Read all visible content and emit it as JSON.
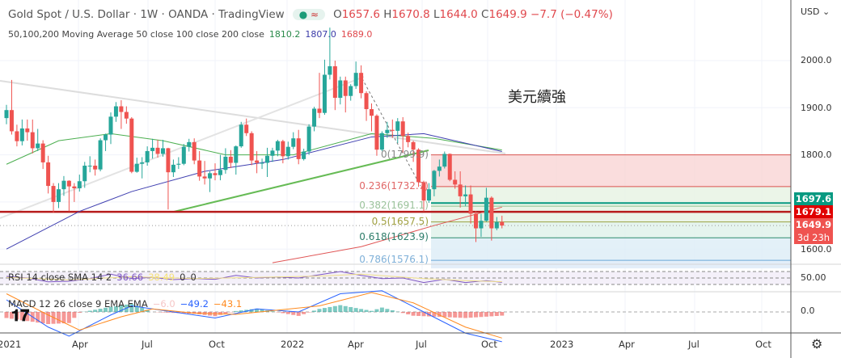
{
  "header": {
    "symbol": "Gold Spot / U.S. Dollar · 1W · OANDA · TradingView",
    "badge_dot": "●",
    "badge_wave": "≈",
    "open_label": "O",
    "open": "1657.6",
    "high_label": "H",
    "high": "1670.8",
    "low_label": "L",
    "low": "1644.0",
    "close_label": "C",
    "close": "1649.9",
    "change": "−7.7 (−0.47%)",
    "ma_label": "50,100,200 Moving Average 50 close 100 close 200 close",
    "ma50": "1810.2",
    "ma100": "1807.0",
    "ma200": "1689.0"
  },
  "annotation": "美元續強",
  "fib_labels": [
    "0(1799.9)",
    "0.236(1732.7)",
    "0.382(1691.1)",
    "0.5(1657.5)",
    "0.618(1623.9)",
    "0.786(1576.1)"
  ],
  "price_axis": {
    "currency": "USD ⌄",
    "ticks": [
      "2000.0",
      "1900.0",
      "1800.0",
      "1600.0"
    ],
    "rsi_tick": "50.00",
    "macd_tick": "0.0"
  },
  "price_tags": {
    "tag1": "1697.6",
    "tag2": "1679.1",
    "last": "1649.9",
    "countdown": "3d 23h"
  },
  "rsi_legend": {
    "label": "RSI 14 close SMA 14 2",
    "rsi": "36.66",
    "sma": "38.49",
    "v3": "0",
    "v4": "0"
  },
  "macd_legend": {
    "label": "MACD 12 26 close 9 EMA EMA",
    "hist": "−6.0",
    "macd": "−49.2",
    "signal": "−43.1"
  },
  "time_axis": [
    "2021",
    "Apr",
    "Jul",
    "Oct",
    "2022",
    "Apr",
    "Jul",
    "Oct",
    "2023",
    "Apr",
    "Jul",
    "Oct"
  ],
  "logo": "TV",
  "settings_icon": "gear-icon",
  "colors": {
    "up": "#26a69a",
    "down": "#ef5350",
    "ma50": "#4caf50",
    "ma100": "#3f3fb0",
    "ma200": "#e05555",
    "support": "#b71c1c",
    "fib_teal": "#089981"
  },
  "chart_data": {
    "type": "candlestick",
    "interval": "1W",
    "x_start": "2020-12-28",
    "ylim": [
      1540,
      2110
    ],
    "candles_ohlc": [
      [
        1878,
        1906,
        1865,
        1895
      ],
      [
        1895,
        1959,
        1843,
        1850
      ],
      [
        1850,
        1864,
        1818,
        1829
      ],
      [
        1829,
        1875,
        1820,
        1856
      ],
      [
        1856,
        1875,
        1830,
        1848
      ],
      [
        1848,
        1875,
        1803,
        1814
      ],
      [
        1814,
        1855,
        1808,
        1824
      ],
      [
        1824,
        1831,
        1770,
        1784
      ],
      [
        1784,
        1798,
        1718,
        1734
      ],
      [
        1734,
        1740,
        1677,
        1700
      ],
      [
        1700,
        1740,
        1687,
        1727
      ],
      [
        1727,
        1755,
        1713,
        1745
      ],
      [
        1745,
        1746,
        1680,
        1733
      ],
      [
        1733,
        1740,
        1700,
        1729
      ],
      [
        1729,
        1758,
        1722,
        1744
      ],
      [
        1744,
        1785,
        1730,
        1777
      ],
      [
        1777,
        1797,
        1763,
        1777
      ],
      [
        1777,
        1790,
        1756,
        1769
      ],
      [
        1769,
        1835,
        1765,
        1831
      ],
      [
        1831,
        1845,
        1808,
        1843
      ],
      [
        1843,
        1890,
        1823,
        1881
      ],
      [
        1881,
        1912,
        1870,
        1903
      ],
      [
        1903,
        1916,
        1855,
        1891
      ],
      [
        1891,
        1903,
        1866,
        1877
      ],
      [
        1877,
        1880,
        1761,
        1764
      ],
      [
        1764,
        1794,
        1762,
        1781
      ],
      [
        1781,
        1795,
        1750,
        1784
      ],
      [
        1784,
        1818,
        1777,
        1808
      ],
      [
        1808,
        1834,
        1792,
        1815
      ],
      [
        1815,
        1832,
        1794,
        1802
      ],
      [
        1802,
        1832,
        1796,
        1814
      ],
      [
        1814,
        1815,
        1684,
        1763
      ],
      [
        1763,
        1790,
        1753,
        1779
      ],
      [
        1779,
        1795,
        1770,
        1781
      ],
      [
        1781,
        1823,
        1778,
        1817
      ],
      [
        1817,
        1834,
        1807,
        1827
      ],
      [
        1827,
        1835,
        1780,
        1788
      ],
      [
        1788,
        1808,
        1745,
        1754
      ],
      [
        1754,
        1787,
        1737,
        1750
      ],
      [
        1750,
        1765,
        1721,
        1761
      ],
      [
        1761,
        1782,
        1746,
        1757
      ],
      [
        1757,
        1800,
        1746,
        1768
      ],
      [
        1768,
        1814,
        1760,
        1796
      ],
      [
        1796,
        1810,
        1772,
        1783
      ],
      [
        1783,
        1820,
        1758,
        1818
      ],
      [
        1818,
        1870,
        1815,
        1864
      ],
      [
        1864,
        1877,
        1840,
        1846
      ],
      [
        1846,
        1850,
        1778,
        1788
      ],
      [
        1788,
        1808,
        1761,
        1783
      ],
      [
        1783,
        1792,
        1770,
        1783
      ],
      [
        1783,
        1815,
        1753,
        1798
      ],
      [
        1798,
        1815,
        1785,
        1809
      ],
      [
        1809,
        1832,
        1797,
        1829
      ],
      [
        1829,
        1832,
        1782,
        1797
      ],
      [
        1797,
        1828,
        1790,
        1817
      ],
      [
        1817,
        1848,
        1812,
        1835
      ],
      [
        1835,
        1853,
        1780,
        1791
      ],
      [
        1791,
        1813,
        1788,
        1807
      ],
      [
        1807,
        1865,
        1800,
        1860
      ],
      [
        1860,
        1902,
        1850,
        1898
      ],
      [
        1898,
        1974,
        1878,
        1889
      ],
      [
        1889,
        2002,
        1885,
        1970
      ],
      [
        1970,
        2070,
        1960,
        1988
      ],
      [
        1988,
        2000,
        1895,
        1921
      ],
      [
        1921,
        1966,
        1907,
        1958
      ],
      [
        1958,
        1966,
        1890,
        1925
      ],
      [
        1925,
        1950,
        1915,
        1946
      ],
      [
        1946,
        1998,
        1940,
        1974
      ],
      [
        1974,
        1990,
        1920,
        1931
      ],
      [
        1931,
        1935,
        1872,
        1897
      ],
      [
        1897,
        1909,
        1850,
        1883
      ],
      [
        1883,
        1886,
        1798,
        1811
      ],
      [
        1811,
        1850,
        1808,
        1846
      ],
      [
        1846,
        1870,
        1836,
        1853
      ],
      [
        1853,
        1875,
        1836,
        1851
      ],
      [
        1851,
        1878,
        1825,
        1871
      ],
      [
        1871,
        1880,
        1805,
        1840
      ],
      [
        1840,
        1847,
        1816,
        1827
      ],
      [
        1827,
        1830,
        1785,
        1811
      ],
      [
        1811,
        1814,
        1732,
        1742
      ],
      [
        1742,
        1745,
        1680,
        1703
      ],
      [
        1703,
        1740,
        1698,
        1727
      ],
      [
        1727,
        1768,
        1712,
        1766
      ],
      [
        1766,
        1790,
        1754,
        1775
      ],
      [
        1775,
        1807,
        1771,
        1802
      ],
      [
        1802,
        1803,
        1744,
        1747
      ],
      [
        1747,
        1765,
        1728,
        1737
      ],
      [
        1737,
        1765,
        1688,
        1712
      ],
      [
        1712,
        1735,
        1691,
        1716
      ],
      [
        1716,
        1735,
        1654,
        1675
      ],
      [
        1675,
        1680,
        1615,
        1644
      ],
      [
        1644,
        1675,
        1626,
        1660
      ],
      [
        1660,
        1730,
        1658,
        1709
      ],
      [
        1709,
        1712,
        1618,
        1644
      ],
      [
        1644,
        1668,
        1640,
        1657.6
      ],
      [
        1657.6,
        1670.8,
        1644.0,
        1649.9
      ]
    ],
    "ma50": [
      [
        0,
        1780
      ],
      [
        10,
        1830
      ],
      [
        20,
        1845
      ],
      [
        30,
        1830
      ],
      [
        42,
        1800
      ],
      [
        55,
        1800
      ],
      [
        70,
        1845
      ],
      [
        82,
        1835
      ],
      [
        95,
        1810.2
      ]
    ],
    "ma100": [
      [
        0,
        1600
      ],
      [
        14,
        1680
      ],
      [
        24,
        1722
      ],
      [
        38,
        1765
      ],
      [
        53,
        1790
      ],
      [
        70,
        1838
      ],
      [
        80,
        1845
      ],
      [
        95,
        1807.0
      ]
    ],
    "ma200": [
      [
        51,
        1571
      ],
      [
        68,
        1605
      ],
      [
        82,
        1650
      ],
      [
        95,
        1689.0
      ]
    ],
    "support_level": 1679.1,
    "resistance_level": 1697.6,
    "fib_levels": [
      {
        "ratio": 0,
        "price": 1799.9
      },
      {
        "ratio": 0.236,
        "price": 1732.7
      },
      {
        "ratio": 0.382,
        "price": 1691.1
      },
      {
        "ratio": 0.5,
        "price": 1657.5
      },
      {
        "ratio": 0.618,
        "price": 1623.9
      },
      {
        "ratio": 0.786,
        "price": 1576.1
      }
    ],
    "rsi": [
      [
        0,
        55
      ],
      [
        4,
        50
      ],
      [
        8,
        38
      ],
      [
        12,
        40
      ],
      [
        16,
        48
      ],
      [
        20,
        62
      ],
      [
        24,
        48
      ],
      [
        28,
        52
      ],
      [
        32,
        45
      ],
      [
        36,
        48
      ],
      [
        40,
        46
      ],
      [
        44,
        58
      ],
      [
        48,
        50
      ],
      [
        52,
        53
      ],
      [
        56,
        50
      ],
      [
        60,
        60
      ],
      [
        64,
        70
      ],
      [
        68,
        58
      ],
      [
        72,
        48
      ],
      [
        76,
        50
      ],
      [
        80,
        36
      ],
      [
        84,
        46
      ],
      [
        88,
        36
      ],
      [
        92,
        42
      ],
      [
        95,
        36.66
      ]
    ],
    "rsi_sma": [
      [
        0,
        52
      ],
      [
        12,
        44
      ],
      [
        24,
        54
      ],
      [
        36,
        48
      ],
      [
        48,
        52
      ],
      [
        60,
        56
      ],
      [
        68,
        62
      ],
      [
        80,
        48
      ],
      [
        88,
        42
      ],
      [
        95,
        38.49
      ]
    ],
    "macd": [
      [
        0,
        20
      ],
      [
        8,
        -25
      ],
      [
        12,
        -40
      ],
      [
        20,
        -5
      ],
      [
        24,
        10
      ],
      [
        32,
        0
      ],
      [
        40,
        -10
      ],
      [
        48,
        5
      ],
      [
        56,
        0
      ],
      [
        64,
        30
      ],
      [
        72,
        35
      ],
      [
        80,
        0
      ],
      [
        88,
        -35
      ],
      [
        95,
        -49.2
      ]
    ],
    "macd_signal": [
      [
        0,
        30
      ],
      [
        8,
        -5
      ],
      [
        14,
        -30
      ],
      [
        22,
        -8
      ],
      [
        28,
        5
      ],
      [
        36,
        -2
      ],
      [
        44,
        -4
      ],
      [
        52,
        3
      ],
      [
        60,
        10
      ],
      [
        70,
        32
      ],
      [
        78,
        15
      ],
      [
        88,
        -25
      ],
      [
        95,
        -43.1
      ]
    ]
  }
}
